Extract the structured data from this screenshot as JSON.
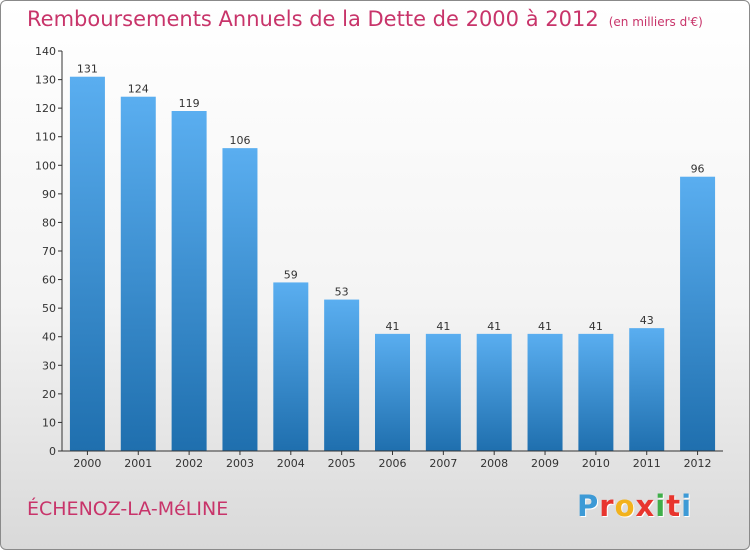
{
  "header": {
    "title": "Remboursements Annuels de la Dette de 2000 à 2012",
    "subtitle": "(en milliers d'€)"
  },
  "footer": {
    "place": "ÉCHENOZ-LA-MéLINE",
    "logo_letters": [
      "P",
      "r",
      "o",
      "x",
      "i",
      "t",
      "i"
    ],
    "logo_colors": [
      "#3d9ad6",
      "#e8352e",
      "#f2b21c",
      "#e8352e",
      "#3fae49",
      "#e8352e",
      "#3d9ad6"
    ]
  },
  "chart_data": {
    "type": "bar",
    "categories": [
      "2000",
      "2001",
      "2002",
      "2003",
      "2004",
      "2005",
      "2006",
      "2007",
      "2008",
      "2009",
      "2010",
      "2011",
      "2012"
    ],
    "values": [
      131,
      124,
      119,
      106,
      59,
      53,
      41,
      41,
      41,
      41,
      41,
      43,
      96
    ],
    "title": "Remboursements Annuels de la Dette de 2000 à 2012",
    "subtitle": "(en milliers d'€)",
    "ylim": [
      0,
      140
    ],
    "yticks": [
      0,
      10,
      20,
      30,
      40,
      50,
      60,
      70,
      80,
      90,
      100,
      110,
      120,
      130,
      140
    ],
    "grid": false,
    "colors": {
      "bar_top": "#5aaef0",
      "bar_bottom": "#1f6fae",
      "axis": "#333333"
    }
  }
}
